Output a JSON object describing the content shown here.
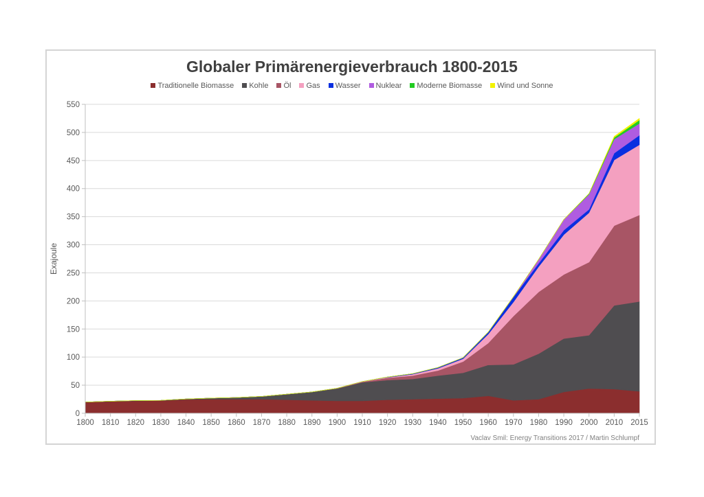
{
  "chart_data": {
    "type": "area",
    "stacked": true,
    "title": "Globaler Primärenergieverbrauch 1800-2015",
    "xlabel": "",
    "ylabel": "Exajoule",
    "ylim": [
      0,
      550
    ],
    "yticks": [
      0,
      50,
      100,
      150,
      200,
      250,
      300,
      350,
      400,
      450,
      500,
      550
    ],
    "grid": true,
    "legend_position": "top",
    "categories": [
      "1800",
      "1810",
      "1820",
      "1830",
      "1840",
      "1850",
      "1860",
      "1870",
      "1880",
      "1890",
      "1900",
      "1910",
      "1920",
      "1930",
      "1940",
      "1950",
      "1960",
      "1970",
      "1980",
      "1990",
      "2000",
      "2010",
      "2015"
    ],
    "series": [
      {
        "name": "Traditionelle Biomasse",
        "color": "#8B2E2E",
        "values": [
          20,
          21,
          22,
          22.5,
          24.5,
          25,
          25,
          25,
          24,
          23,
          22,
          22,
          24,
          25,
          26,
          27,
          31,
          23,
          25,
          38,
          44,
          43,
          39
        ]
      },
      {
        "name": "Kohle",
        "color": "#4F4D50",
        "values": [
          0,
          0.5,
          0.5,
          0.5,
          1,
          2,
          3,
          5,
          10,
          15,
          22,
          33,
          35,
          36,
          41,
          45,
          55,
          64,
          81,
          95,
          95,
          149,
          160
        ]
      },
      {
        "name": "Öl",
        "color": "#A85565",
        "values": [
          0,
          0,
          0,
          0,
          0,
          0,
          0,
          0,
          0,
          0,
          0.5,
          1,
          4,
          6,
          9,
          20,
          39,
          86,
          110,
          114,
          130,
          142,
          154
        ]
      },
      {
        "name": "Gas",
        "color": "#F4A0C0",
        "values": [
          0,
          0,
          0,
          0,
          0,
          0,
          0,
          0,
          0,
          0,
          0,
          0.5,
          1,
          2.5,
          4,
          5,
          16,
          25,
          45,
          71,
          88,
          117,
          125
        ]
      },
      {
        "name": "Wasser",
        "color": "#0A2FE0",
        "values": [
          0,
          0,
          0,
          0,
          0,
          0,
          0,
          0,
          0,
          0,
          0,
          0,
          0.5,
          1,
          1.5,
          2,
          3.5,
          9,
          6,
          8,
          6,
          12,
          17
        ]
      },
      {
        "name": "Nuklear",
        "color": "#B05CE0",
        "values": [
          0,
          0,
          0,
          0,
          0,
          0,
          0,
          0,
          0,
          0,
          0,
          0,
          0,
          0,
          0,
          0,
          0,
          0.5,
          7,
          19,
          27,
          25,
          21
        ]
      },
      {
        "name": "Moderne Biomasse",
        "color": "#22CC22",
        "values": [
          0,
          0,
          0,
          0,
          0,
          0,
          0,
          0,
          0,
          0,
          0,
          0,
          0,
          0,
          0,
          0,
          0,
          0,
          0,
          0,
          1,
          3,
          6
        ]
      },
      {
        "name": "Wind und Sonne",
        "color": "#F2F200",
        "values": [
          0,
          0,
          0,
          0,
          0,
          0,
          0,
          0,
          0,
          0,
          0,
          0,
          0,
          0,
          0,
          0,
          0,
          0,
          0,
          0,
          0,
          2,
          3
        ]
      }
    ],
    "annotations": [
      "Vaclav Smil: Energy  Transitions 2017  /  Martin Schlumpf"
    ]
  }
}
